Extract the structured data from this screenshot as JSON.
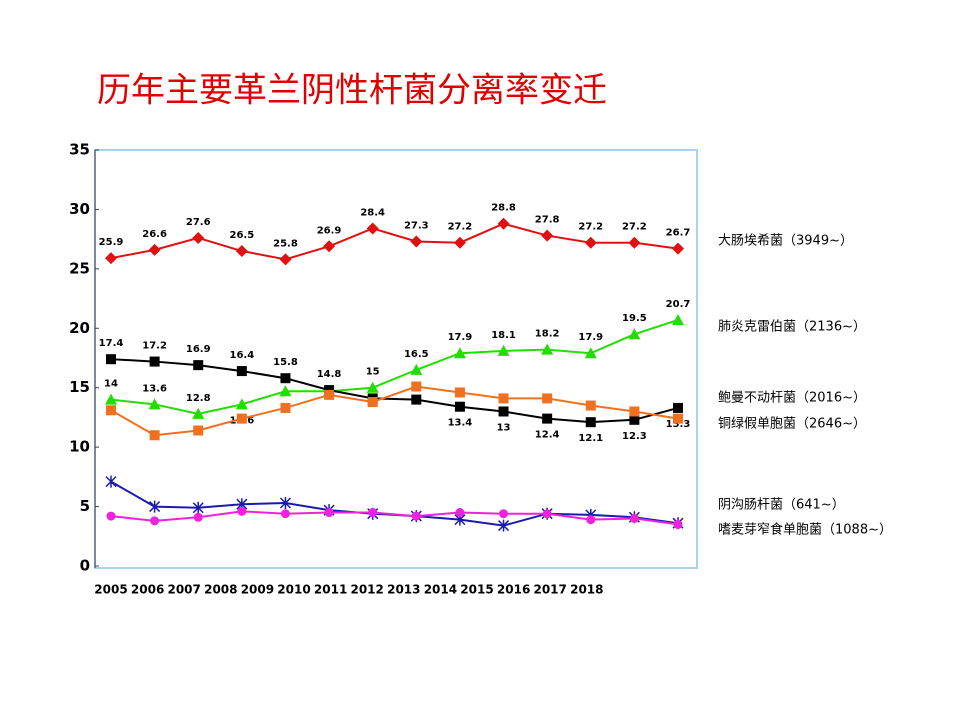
{
  "chart_data": {
    "type": "line",
    "title": "历年主要革兰阴性杆菌分离率变迁",
    "categories": [
      "2005",
      "2006",
      "2007",
      "2008",
      "2009",
      "2010",
      "2011",
      "2012",
      "2013",
      "2014",
      "2015",
      "2016",
      "2017",
      "2018"
    ],
    "ylim": [
      0,
      35
    ],
    "yticks": [
      0,
      5,
      10,
      15,
      20,
      25,
      30,
      35
    ],
    "series": [
      {
        "name": "大肠埃希菌（3949~）",
        "color": "#e01010",
        "marker": "diamond",
        "values": [
          25.9,
          26.6,
          27.6,
          26.5,
          25.8,
          26.9,
          28.4,
          27.3,
          27.2,
          28.8,
          27.8,
          27.2,
          27.2,
          26.7
        ],
        "value_labels": [
          "25.9",
          "26.6",
          "27.6",
          "26.5",
          "25.8",
          "26.9",
          "28.4",
          "27.3",
          "27.2",
          "28.8",
          "27.8",
          "27.2",
          "27.2",
          "26.7"
        ]
      },
      {
        "name": "肺炎克雷伯菌（2136~）",
        "color": "#22dd00",
        "marker": "triangle",
        "values": [
          14,
          13.6,
          12.8,
          13.6,
          14.7,
          14.7,
          15,
          16.5,
          17.9,
          18.1,
          18.2,
          17.9,
          19.5,
          20.7
        ],
        "value_labels": [
          "14",
          "13.6",
          "12.8",
          "13.6",
          null,
          null,
          "15",
          "16.5",
          "17.9",
          "18.1",
          "18.2",
          "17.9",
          "19.5",
          "20.7"
        ]
      },
      {
        "name": "鲍曼不动杆菌（2016~）",
        "color": "#000000",
        "marker": "square",
        "values": [
          17.4,
          17.2,
          16.9,
          16.4,
          15.8,
          14.8,
          14.1,
          14.0,
          13.4,
          13,
          12.4,
          12.1,
          12.3,
          13.3
        ],
        "value_labels": [
          "17.4",
          "17.2",
          "16.9",
          "16.4",
          "15.8",
          "14.8",
          null,
          null,
          "13.4",
          "13",
          "12.4",
          "12.1",
          "12.3",
          "13.3"
        ]
      },
      {
        "name": "铜绿假单胞菌（2646~）",
        "color": "#f07020",
        "marker": "square",
        "values": [
          13.1,
          11.0,
          11.4,
          12.4,
          13.3,
          14.4,
          13.8,
          15.1,
          14.6,
          14.1,
          14.1,
          13.5,
          13.0,
          12.4
        ]
      },
      {
        "name": "阴沟肠杆菌（641~）",
        "color": "#1a1ab0",
        "marker": "asterisk",
        "values": [
          7.1,
          5.0,
          4.9,
          5.2,
          5.3,
          4.7,
          4.4,
          4.2,
          3.9,
          3.4,
          4.4,
          4.3,
          4.1,
          3.6
        ]
      },
      {
        "name": "嗜麦芽窄食单胞菌（1088~）",
        "color": "#ee22dd",
        "marker": "circle",
        "values": [
          4.2,
          3.8,
          4.1,
          4.6,
          4.4,
          4.5,
          4.5,
          4.2,
          4.5,
          4.4,
          4.4,
          3.9,
          4.0,
          3.5
        ]
      }
    ]
  }
}
